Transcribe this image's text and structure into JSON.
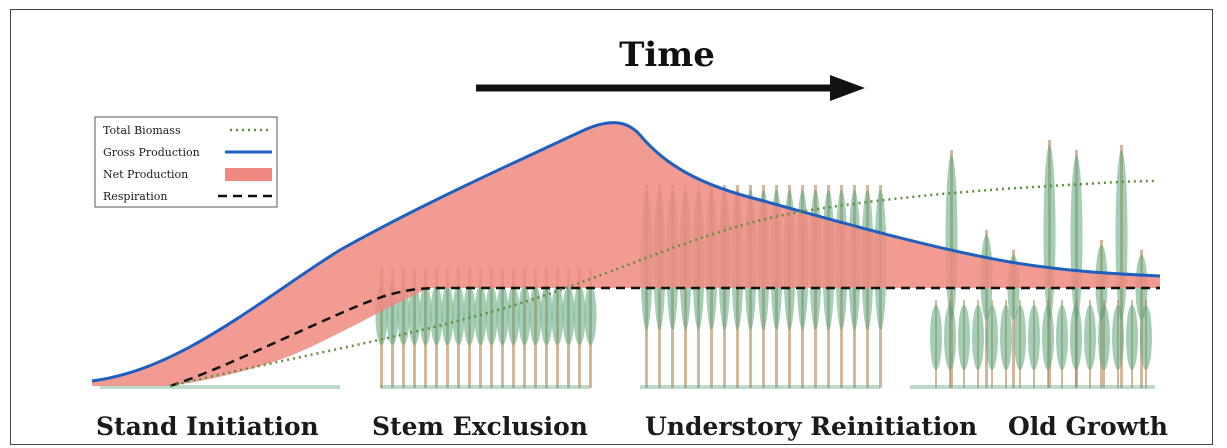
{
  "title": "Time",
  "legend": [
    {
      "label": "Total Biomass",
      "style": "dotted",
      "color": "#5d8f3c"
    },
    {
      "label": "Gross Production",
      "style": "solid",
      "color": "#1f5fbf"
    },
    {
      "label": "Net Production",
      "style": "fill",
      "color": "#f08a80"
    },
    {
      "label": "Respiration",
      "style": "dashed",
      "color": "#111111"
    }
  ],
  "stages": [
    "Stand Initiation",
    "Stem Exclusion",
    "Understory Reinitiation",
    "Old Growth"
  ],
  "colors": {
    "gross_line": "#1f5fbf",
    "net_fill": "#f08a80",
    "respiration": "#111111",
    "biomass": "#5d8f3c",
    "tree_trunk": "#b07a4a",
    "tree_crown": "#5aa57a"
  },
  "icons": [
    "arrow-right-icon",
    "forest-stand-illustration"
  ]
}
